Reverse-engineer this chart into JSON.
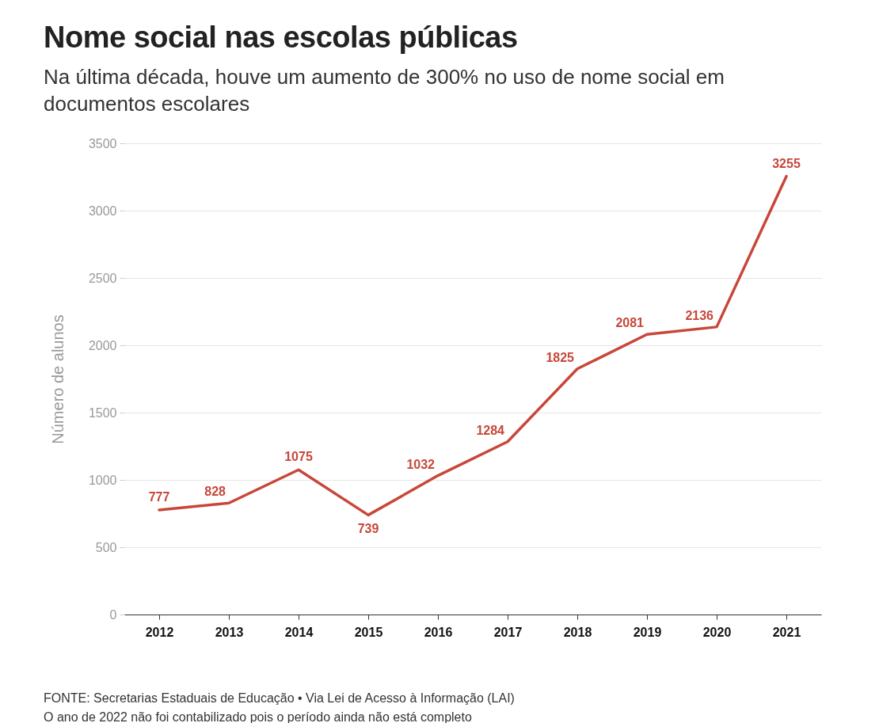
{
  "chart_data": {
    "type": "line",
    "title": "Nome social nas escolas públicas",
    "subtitle": "Na última década, houve um aumento de 300% no uso de nome social em documentos escolares",
    "ylabel": "Número de alunos",
    "categories": [
      "2012",
      "2013",
      "2014",
      "2015",
      "2016",
      "2017",
      "2018",
      "2019",
      "2020",
      "2021"
    ],
    "series": [
      {
        "color": "#c8473a",
        "values": [
          777,
          828,
          1075,
          739,
          1032,
          1284,
          1825,
          2081,
          2136,
          3255
        ]
      }
    ],
    "ylim": [
      0,
      3500
    ],
    "yticks": [
      0,
      500,
      1000,
      1500,
      2000,
      2500,
      3000,
      3500
    ],
    "grid": "y",
    "data_labels": true,
    "marker": "none",
    "line_style": "solid",
    "annotations": [
      "FONTE: Secretarias Estaduais de Educação • Via Lei de Acesso à Informação (LAI)",
      "O ano de 2022 não foi contabilizado pois o período ainda não está completo"
    ]
  }
}
